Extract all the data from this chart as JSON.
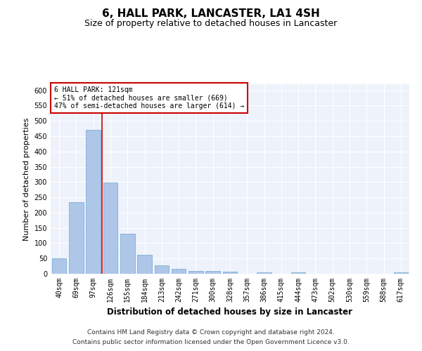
{
  "title": "6, HALL PARK, LANCASTER, LA1 4SH",
  "subtitle": "Size of property relative to detached houses in Lancaster",
  "xlabel": "Distribution of detached houses by size in Lancaster",
  "ylabel": "Number of detached properties",
  "categories": [
    "40sqm",
    "69sqm",
    "97sqm",
    "126sqm",
    "155sqm",
    "184sqm",
    "213sqm",
    "242sqm",
    "271sqm",
    "300sqm",
    "328sqm",
    "357sqm",
    "386sqm",
    "415sqm",
    "444sqm",
    "473sqm",
    "502sqm",
    "530sqm",
    "559sqm",
    "588sqm",
    "617sqm"
  ],
  "values": [
    50,
    235,
    470,
    298,
    130,
    63,
    28,
    16,
    10,
    10,
    8,
    0,
    5,
    0,
    5,
    0,
    0,
    0,
    0,
    0,
    5
  ],
  "bar_color": "#aec6e8",
  "bar_edgecolor": "#7aafd4",
  "highlight_line_color": "#cc0000",
  "annotation_text": "6 HALL PARK: 121sqm\n← 51% of detached houses are smaller (669)\n47% of semi-detached houses are larger (614) →",
  "annotation_box_color": "#ffffff",
  "annotation_box_edgecolor": "#cc0000",
  "ylim": [
    0,
    620
  ],
  "yticks": [
    0,
    50,
    100,
    150,
    200,
    250,
    300,
    350,
    400,
    450,
    500,
    550,
    600
  ],
  "background_color": "#eef2fb",
  "grid_color": "#ffffff",
  "footer_line1": "Contains HM Land Registry data © Crown copyright and database right 2024.",
  "footer_line2": "Contains public sector information licensed under the Open Government Licence v3.0.",
  "title_fontsize": 11,
  "subtitle_fontsize": 9,
  "xlabel_fontsize": 8.5,
  "ylabel_fontsize": 8,
  "tick_fontsize": 7,
  "footer_fontsize": 6.5,
  "annotation_fontsize": 7
}
